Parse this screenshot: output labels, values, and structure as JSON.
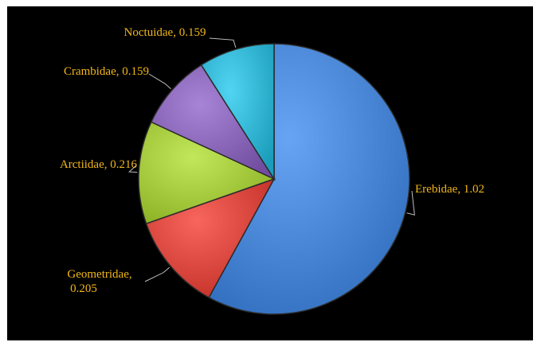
{
  "chart_data": {
    "type": "pie",
    "title": "",
    "slices": [
      {
        "label": "Erebidae",
        "value": 1.02,
        "display": "1.02",
        "color": "#4a86d6"
      },
      {
        "label": "Geometridae",
        "value": 0.205,
        "display": "0.205",
        "color": "#d9473f"
      },
      {
        "label": "Arctiidae",
        "value": 0.216,
        "display": "0.216",
        "color": "#a4c93d"
      },
      {
        "label": "Crambidae",
        "value": 0.159,
        "display": "0.159",
        "color": "#8a66b8"
      },
      {
        "label": "Noctuidae",
        "value": 0.159,
        "display": "0.159",
        "color": "#33b6d3"
      }
    ],
    "start_angle_deg": 0,
    "direction": "clockwise",
    "label_color": "#f2b71a",
    "leader_color": "#bfbfbf",
    "background": "#000000",
    "legend": "none"
  }
}
